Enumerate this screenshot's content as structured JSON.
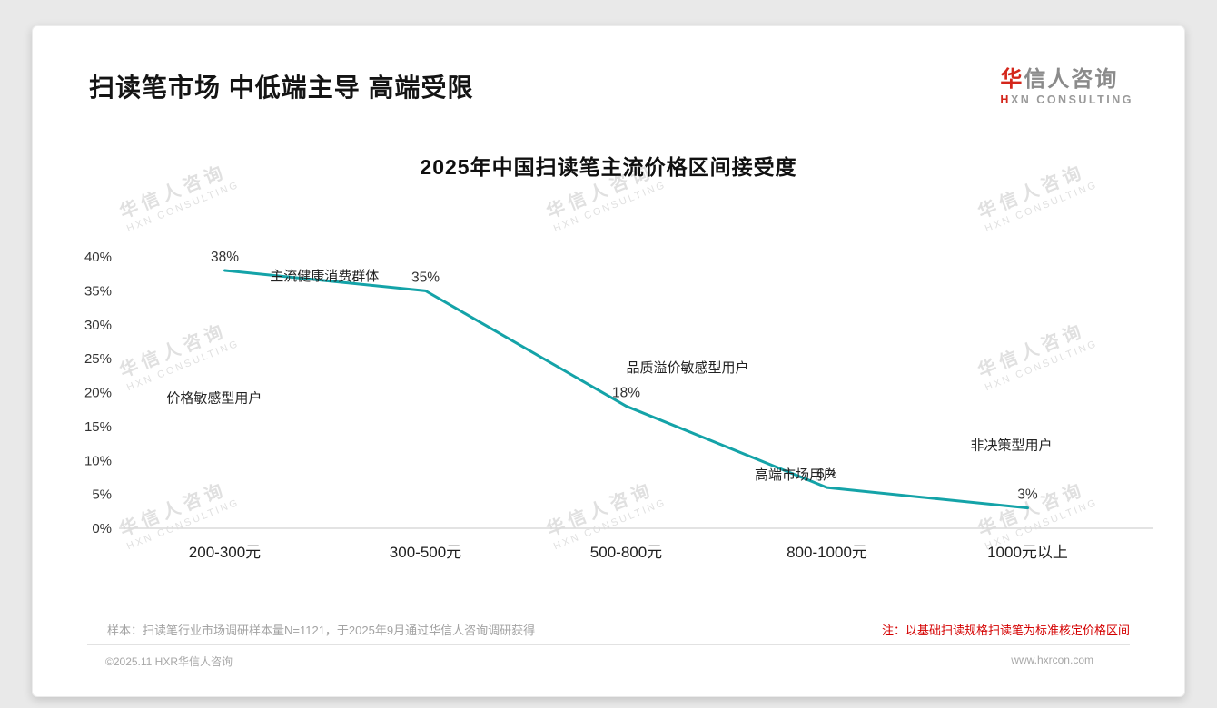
{
  "page": {
    "header_title": "扫读笔市场 中低端主导 高端受限",
    "logo": {
      "cn_first": "华",
      "cn_rest": "信人咨询",
      "en_first": "H",
      "en_rest": "XN CONSULTING"
    },
    "watermark": {
      "line1": "华信人咨询",
      "line2": "HXN CONSULTING"
    }
  },
  "chart_data": {
    "type": "line",
    "title": "2025年中国扫读笔主流价格区间接受度",
    "categories": [
      "200-300元",
      "300-500元",
      "500-800元",
      "800-1000元",
      "1000元以上"
    ],
    "values": [
      38,
      35,
      18,
      6,
      3
    ],
    "value_labels": [
      "38%",
      "35%",
      "18%",
      "6%",
      "3%"
    ],
    "xlabel": "",
    "ylabel": "",
    "ylim": [
      0,
      40
    ],
    "ytick_step": 5,
    "yticks": [
      "0%",
      "5%",
      "10%",
      "15%",
      "20%",
      "25%",
      "30%",
      "35%",
      "40%"
    ],
    "grid": false,
    "legend": false,
    "line_color": "#14a3a8",
    "annotations": [
      {
        "id": "mainstream-consumers",
        "text": "主流健康消费群体",
        "fx": 0.145,
        "fy": 36.5
      },
      {
        "id": "price-sensitive-users",
        "text": "价格敏感型用户",
        "fx": 0.042,
        "fy": 18.5
      },
      {
        "id": "quality-premium-sensitive-users",
        "text": "品质溢价敏感型用户",
        "fx": 0.5,
        "fy": 23.0
      },
      {
        "id": "high-end-market-users",
        "text": "高端市场用户",
        "fx": 0.628,
        "fy": 7.2
      },
      {
        "id": "non-decision-users",
        "text": "非决策型用户",
        "fx": 0.843,
        "fy": 11.6
      }
    ]
  },
  "footnotes": {
    "sample": "样本：扫读笔行业市场调研样本量N=1121，于2025年9月通过华信人咨询调研获得",
    "note": "注：以基础扫读规格扫读笔为标准核定价格区间"
  },
  "footer": {
    "copyright": "©2025.11 HXR华信人咨询",
    "website": "www.hxrcon.com"
  }
}
